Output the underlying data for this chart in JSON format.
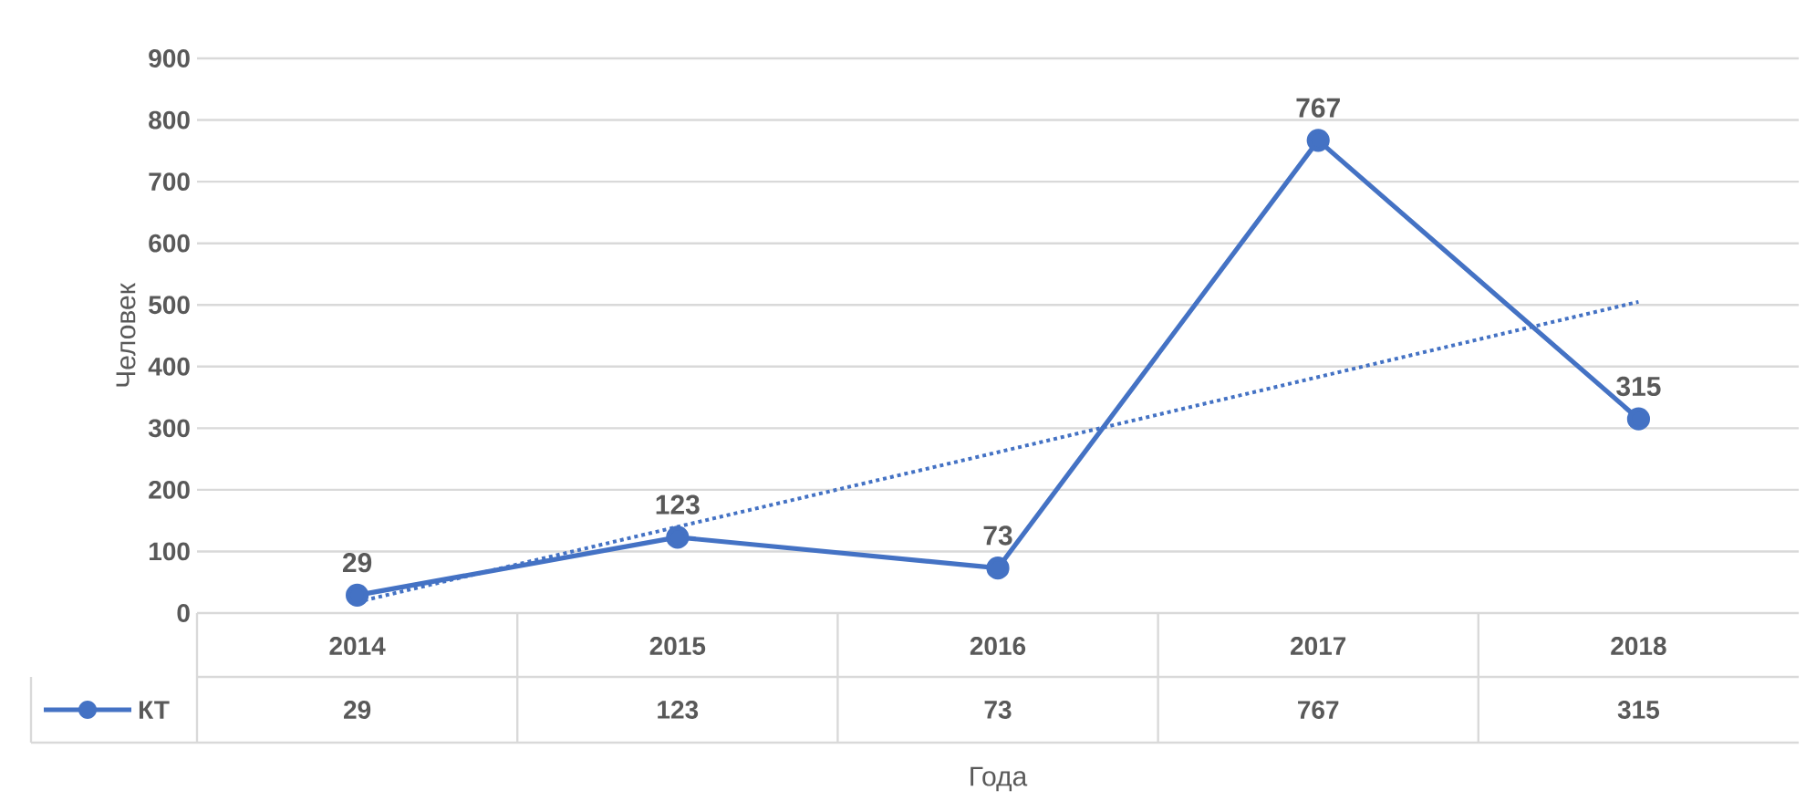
{
  "chart_data": {
    "type": "line",
    "xlabel": "Года",
    "ylabel": "Человек",
    "categories": [
      "2014",
      "2015",
      "2016",
      "2017",
      "2018"
    ],
    "series": [
      {
        "name": "КТ",
        "color": "#4472c4",
        "values": [
          29,
          123,
          73,
          767,
          315
        ],
        "value_labels": [
          "29",
          "123",
          "73",
          "767",
          "315"
        ],
        "marker": "circle",
        "line_style": "solid"
      },
      {
        "type": "line",
        "color": "#4472c4",
        "values": [
          18,
          140,
          261,
          383,
          505
        ],
        "marker": "none",
        "line_style": "dotted"
      }
    ],
    "ylim": [
      0,
      900
    ],
    "yticks": [
      0,
      100,
      200,
      300,
      400,
      500,
      600,
      700,
      800,
      900
    ],
    "grid": "y",
    "legend": "bottom"
  }
}
